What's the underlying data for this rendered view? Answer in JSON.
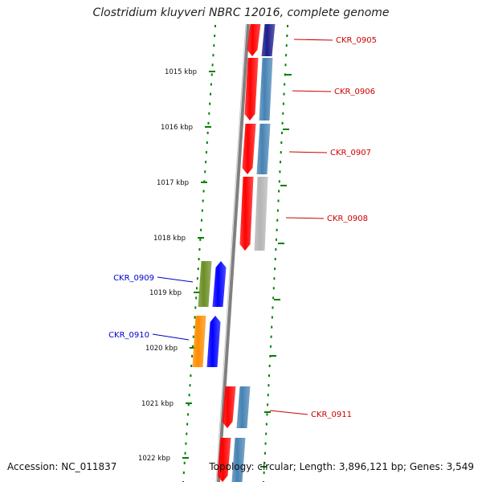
{
  "title": "Clostridium kluyveri NBRC 12016, complete genome",
  "footer": {
    "accession": "Accession: NC_011837",
    "summary": "Topology: circular; Length: 3,896,121 bp; Genes: 3,549"
  },
  "kbp_ticks": [
    "1015 kbp",
    "1016 kbp",
    "1017 kbp",
    "1018 kbp",
    "1019 kbp",
    "1020 kbp",
    "1021 kbp",
    "1022 kbp"
  ],
  "genes": [
    {
      "name": "CKR_0905",
      "strand": "forward",
      "cds_color": "#ff0000",
      "product_color": "#1c1c8c"
    },
    {
      "name": "CKR_0906",
      "strand": "forward",
      "cds_color": "#ff0000",
      "product_color": "#4682b4"
    },
    {
      "name": "CKR_0907",
      "strand": "forward",
      "cds_color": "#ff0000",
      "product_color": "#4682b4"
    },
    {
      "name": "CKR_0908",
      "strand": "forward",
      "cds_color": "#ff0000",
      "product_color": "#b4b4b4"
    },
    {
      "name": "CKR_0909",
      "strand": "reverse",
      "cds_color": "#0000ff",
      "product_color": "#6b8e23"
    },
    {
      "name": "CKR_0910",
      "strand": "reverse",
      "cds_color": "#0000ff",
      "product_color": "#ff8c00"
    },
    {
      "name": "CKR_0911",
      "strand": "forward",
      "cds_color": "#ff0000",
      "product_color": "#4682b4"
    }
  ],
  "colors": {
    "forward_label": "#cc0000",
    "reverse_label": "#0000cc",
    "ruler": "#008000",
    "backbone": "#808080"
  }
}
